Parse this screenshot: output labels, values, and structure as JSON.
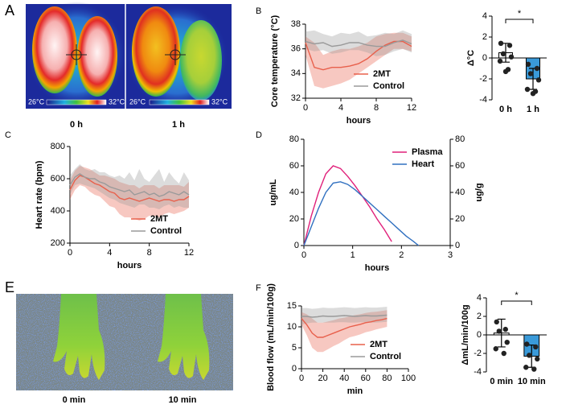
{
  "image_panels": [
    {
      "panel": "A",
      "captions": [
        "0 h",
        "1 h"
      ],
      "scale_labels": [
        "26°C",
        "32°C",
        "26°C",
        "32°C"
      ]
    },
    {
      "panel": "E",
      "captions": [
        "0 min",
        "10 min"
      ]
    }
  ],
  "chart_data": [
    {
      "type": "line",
      "panel": "B",
      "xlabel": "hours",
      "ylabel": "Core temperature (°C)",
      "x": [
        0,
        1,
        2,
        3,
        4,
        5,
        6,
        7,
        8,
        9,
        10,
        11,
        12
      ],
      "xlim": [
        0,
        12
      ],
      "xticks": [
        0,
        4,
        8,
        12
      ],
      "ylim": [
        32,
        38
      ],
      "yticks": [
        32,
        34,
        36,
        38
      ],
      "legend": "lower right",
      "series": [
        {
          "name": "2MT",
          "color": "#e8604c",
          "values": [
            36.5,
            34.5,
            34.3,
            34.5,
            34.5,
            34.6,
            34.8,
            35.2,
            35.8,
            36.3,
            36.6,
            36.6,
            36.2
          ],
          "upper": [
            37,
            36.5,
            35.5,
            35.8,
            36,
            36,
            36.2,
            36.5,
            37,
            37.2,
            37.3,
            37.3,
            37
          ],
          "lower": [
            35.5,
            33,
            32.8,
            33,
            33.2,
            33.5,
            34,
            34.5,
            35,
            35.5,
            36,
            36,
            35.8
          ]
        },
        {
          "name": "Control",
          "color": "#9a9a9a",
          "values": [
            36.6,
            36.4,
            36.5,
            36.2,
            36.3,
            36.5,
            36.5,
            36.3,
            36.2,
            36.2,
            36.5,
            36.7,
            36.4
          ],
          "upper": [
            37.4,
            37.5,
            37.2,
            37,
            37.3,
            37.2,
            37.4,
            37,
            37.1,
            37.3,
            37.2,
            37.5,
            37.2
          ],
          "lower": [
            36,
            35.8,
            35.9,
            35.6,
            35.7,
            35.9,
            35.9,
            35.7,
            35.4,
            35.5,
            35.8,
            36,
            35.7
          ]
        }
      ]
    },
    {
      "type": "bar",
      "ylabel": "Δ°C",
      "categories": [
        "0 h",
        "1 h"
      ],
      "values": [
        0.5,
        -2.0
      ],
      "errors": [
        0.9,
        1.0
      ],
      "colors": [
        "#ffffff",
        "#3a9ad9"
      ],
      "ylim": [
        -4,
        4
      ],
      "yticks": [
        -4,
        -2,
        0,
        2,
        4
      ],
      "annotation": "*",
      "points": [
        [
          1.4,
          1.2,
          0.4,
          0.1,
          -0.3,
          -1.1,
          -1.3
        ],
        [
          -0.6,
          -1.0,
          -1.5,
          -2.1,
          -3.0,
          -3.2,
          -3.4
        ]
      ]
    },
    {
      "type": "line",
      "panel": "C",
      "xlabel": "hours",
      "ylabel": "Heart rate (bpm)",
      "x": [
        0,
        0.5,
        1,
        1.5,
        2,
        2.5,
        3,
        3.5,
        4,
        4.5,
        5,
        5.5,
        6,
        6.5,
        7,
        7.5,
        8,
        8.5,
        9,
        9.5,
        10,
        10.5,
        11,
        11.5,
        12
      ],
      "xlim": [
        0,
        12
      ],
      "xticks": [
        0,
        4,
        8,
        12
      ],
      "ylim": [
        200,
        800
      ],
      "yticks": [
        200,
        400,
        600,
        800
      ],
      "legend": "lower right",
      "series": [
        {
          "name": "2MT",
          "color": "#e8604c",
          "values": [
            530,
            590,
            620,
            610,
            590,
            570,
            560,
            540,
            520,
            510,
            480,
            470,
            480,
            470,
            460,
            470,
            480,
            470,
            460,
            470,
            470,
            460,
            470,
            470,
            490
          ],
          "upper": [
            590,
            650,
            680,
            670,
            660,
            640,
            620,
            620,
            610,
            600,
            580,
            570,
            560,
            560,
            540,
            560,
            560,
            560,
            540,
            560,
            560,
            560,
            560,
            550,
            580
          ],
          "lower": [
            470,
            530,
            560,
            550,
            520,
            500,
            490,
            460,
            430,
            420,
            380,
            360,
            360,
            350,
            340,
            350,
            370,
            370,
            360,
            380,
            390,
            380,
            390,
            400,
            420
          ]
        },
        {
          "name": "Control",
          "color": "#9a9a9a",
          "values": [
            560,
            610,
            630,
            610,
            600,
            600,
            580,
            570,
            550,
            540,
            530,
            520,
            530,
            500,
            510,
            520,
            500,
            510,
            490,
            500,
            520,
            510,
            500,
            520,
            500
          ],
          "upper": [
            620,
            660,
            690,
            660,
            650,
            660,
            640,
            640,
            620,
            610,
            620,
            600,
            640,
            590,
            660,
            600,
            580,
            620,
            660,
            580,
            640,
            600,
            570,
            640,
            590
          ],
          "lower": [
            500,
            560,
            570,
            560,
            550,
            540,
            520,
            500,
            480,
            470,
            450,
            440,
            430,
            420,
            440,
            440,
            420,
            420,
            410,
            430,
            440,
            420,
            430,
            420,
            420
          ]
        }
      ]
    },
    {
      "type": "line",
      "panel": "D",
      "xlabel": "hours",
      "ylabel": "ug/mL",
      "y2label": "ug/g",
      "x": [
        0,
        0.15,
        0.3,
        0.45,
        0.6,
        0.75,
        0.9,
        1.05,
        1.2,
        1.35,
        1.5,
        1.65,
        1.8,
        1.95,
        2.1,
        2.25,
        2.35
      ],
      "xlim": [
        0,
        3
      ],
      "xticks": [
        0,
        1,
        2,
        3
      ],
      "ylim": [
        0,
        80
      ],
      "yticks": [
        0,
        20,
        40,
        60,
        80
      ],
      "y2lim": [
        0,
        80
      ],
      "y2ticks": [
        0,
        20,
        40,
        60,
        80
      ],
      "legend": "upper right",
      "series": [
        {
          "name": "Plasma",
          "color": "#e0207a",
          "values": [
            0,
            22,
            40,
            54,
            60,
            58,
            52,
            45,
            37,
            29,
            20,
            12,
            3,
            null,
            null,
            null,
            null
          ]
        },
        {
          "name": "Heart",
          "color": "#3070c0",
          "axis": "y2",
          "values": [
            0,
            14,
            28,
            40,
            47,
            48,
            46,
            42,
            37,
            32,
            27,
            22,
            17,
            12,
            7,
            3,
            0
          ]
        }
      ]
    },
    {
      "type": "line",
      "panel": "F",
      "xlabel": "min",
      "ylabel": "Blood flow (mL/min/100g)",
      "x": [
        0,
        5,
        10,
        15,
        20,
        25,
        30,
        35,
        40,
        45,
        50,
        55,
        60,
        65,
        70,
        75,
        80
      ],
      "xlim": [
        0,
        100
      ],
      "xticks": [
        0,
        20,
        40,
        60,
        80,
        100
      ],
      "ylim": [
        0,
        15
      ],
      "yticks": [
        0,
        5,
        10,
        15
      ],
      "legend": "lower right",
      "series": [
        {
          "name": "2MT",
          "color": "#e8604c",
          "values": [
            12,
            10.5,
            8.5,
            7.5,
            7.5,
            8,
            8.5,
            9,
            9.5,
            10,
            10.3,
            10.6,
            11,
            11.2,
            11.5,
            11.7,
            12
          ],
          "upper": [
            13.5,
            13,
            12,
            11,
            11,
            11.3,
            11.6,
            12,
            12.2,
            12.5,
            12.8,
            13,
            13.3,
            13.5,
            13.6,
            13.8,
            14
          ],
          "lower": [
            10.5,
            8,
            5,
            4,
            4,
            4.7,
            5.4,
            6,
            6.8,
            7.5,
            7.8,
            8.2,
            8.7,
            9,
            9.4,
            9.7,
            10
          ]
        },
        {
          "name": "Control",
          "color": "#9a9a9a",
          "values": [
            12.5,
            12.5,
            12.3,
            12.4,
            12.6,
            12.5,
            12.5,
            12.6,
            12.7,
            12.6,
            12.5,
            12.6,
            12.7,
            12.6,
            12.6,
            12.7,
            12.8
          ],
          "upper": [
            14.5,
            14.5,
            14.3,
            14.4,
            14.6,
            14.5,
            14.5,
            14.6,
            14.7,
            14.6,
            14.5,
            14.6,
            14.7,
            14.6,
            14.6,
            14.7,
            14.8
          ],
          "lower": [
            10.5,
            10.8,
            11,
            11,
            11,
            11,
            11,
            11.1,
            11.1,
            11,
            11,
            11.1,
            11.1,
            11,
            11,
            11.1,
            11.2
          ]
        }
      ]
    },
    {
      "type": "bar",
      "ylabel": "ΔmL/min/100g",
      "categories": [
        "0 min",
        "10 min"
      ],
      "values": [
        0.2,
        -2.3
      ],
      "errors": [
        1.5,
        1.2
      ],
      "colors": [
        "#ffffff",
        "#3a9ad9"
      ],
      "ylim": [
        -4,
        4
      ],
      "yticks": [
        -4,
        -2,
        0,
        2,
        4
      ],
      "annotation": "*",
      "points": [
        [
          1.4,
          0.6,
          0.4,
          -0.8,
          -1.5,
          -2.0
        ],
        [
          -1.0,
          -1.3,
          -2.2,
          -2.6,
          -3.5,
          -3.7
        ]
      ]
    }
  ]
}
